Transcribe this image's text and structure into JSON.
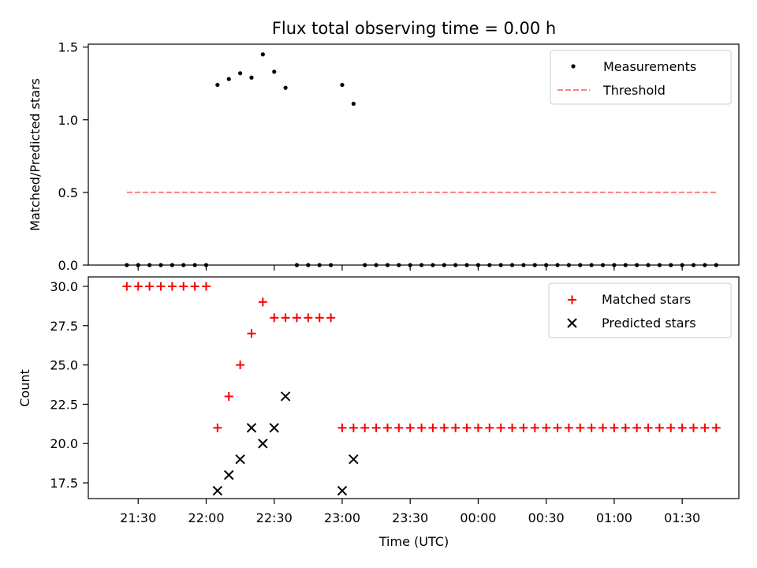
{
  "chart_data": [
    {
      "type": "scatter",
      "title": "Flux total observing time = 0.00 h",
      "xlabel": "",
      "ylabel": "Matched/Predicted stars",
      "ylim": [
        0,
        1.52
      ],
      "yticks": [
        0.0,
        0.5,
        1.0,
        1.5
      ],
      "ytick_labels": [
        "0.0",
        "0.5",
        "1.0",
        "1.5"
      ],
      "legend_position": "top-right",
      "series": [
        {
          "name": "Measurements",
          "marker": "dot",
          "color": "#000000",
          "x": [
            "21:25",
            "21:30",
            "21:35",
            "21:40",
            "21:45",
            "21:50",
            "21:55",
            "22:00",
            "22:05",
            "22:10",
            "22:15",
            "22:20",
            "22:25",
            "22:30",
            "22:35",
            "22:40",
            "22:45",
            "22:50",
            "22:55",
            "23:00",
            "23:05",
            "23:10",
            "23:15",
            "23:20",
            "23:25",
            "23:30",
            "23:35",
            "23:40",
            "23:45",
            "23:50",
            "23:55",
            "00:00",
            "00:05",
            "00:10",
            "00:15",
            "00:20",
            "00:25",
            "00:30",
            "00:35",
            "00:40",
            "00:45",
            "00:50",
            "00:55",
            "01:00",
            "01:05",
            "01:10",
            "01:15",
            "01:20",
            "01:25",
            "01:30",
            "01:35",
            "01:40",
            "01:45"
          ],
          "y": [
            0,
            0,
            0,
            0,
            0,
            0,
            0,
            0,
            1.24,
            1.28,
            1.32,
            1.29,
            1.45,
            1.33,
            1.22,
            0,
            0,
            0,
            0,
            1.24,
            1.11,
            0,
            0,
            0,
            0,
            0,
            0,
            0,
            0,
            0,
            0,
            0,
            0,
            0,
            0,
            0,
            0,
            0,
            0,
            0,
            0,
            0,
            0,
            0,
            0,
            0,
            0,
            0,
            0,
            0,
            0,
            0,
            0
          ]
        },
        {
          "name": "Threshold",
          "style": "dashed-line",
          "color": "#ff7f7f",
          "x": [
            "21:25",
            "01:45"
          ],
          "y": [
            0.5,
            0.5
          ]
        }
      ]
    },
    {
      "type": "scatter",
      "title": "",
      "xlabel": "Time (UTC)",
      "ylabel": "Count",
      "ylim": [
        16.5,
        30.6
      ],
      "yticks": [
        17.5,
        20.0,
        22.5,
        25.0,
        27.5,
        30.0
      ],
      "ytick_labels": [
        "17.5",
        "20.0",
        "22.5",
        "25.0",
        "27.5",
        "30.0"
      ],
      "xlim": [
        "21:08",
        "01:55"
      ],
      "xticks": [
        "21:30",
        "22:00",
        "22:30",
        "23:00",
        "23:30",
        "00:00",
        "00:30",
        "01:00",
        "01:30"
      ],
      "legend_position": "top-right",
      "series": [
        {
          "name": "Matched stars",
          "marker": "plus",
          "color": "#ff0000",
          "x": [
            "21:25",
            "21:30",
            "21:35",
            "21:40",
            "21:45",
            "21:50",
            "21:55",
            "22:00",
            "22:05",
            "22:10",
            "22:15",
            "22:20",
            "22:25",
            "22:30",
            "22:35",
            "22:40",
            "22:45",
            "22:50",
            "22:55",
            "23:00",
            "23:05",
            "23:10",
            "23:15",
            "23:20",
            "23:25",
            "23:30",
            "23:35",
            "23:40",
            "23:45",
            "23:50",
            "23:55",
            "00:00",
            "00:05",
            "00:10",
            "00:15",
            "00:20",
            "00:25",
            "00:30",
            "00:35",
            "00:40",
            "00:45",
            "00:50",
            "00:55",
            "01:00",
            "01:05",
            "01:10",
            "01:15",
            "01:20",
            "01:25",
            "01:30",
            "01:35",
            "01:40",
            "01:45"
          ],
          "y": [
            30,
            30,
            30,
            30,
            30,
            30,
            30,
            30,
            21,
            23,
            25,
            27,
            29,
            28,
            28,
            28,
            28,
            28,
            28,
            21,
            21,
            21,
            21,
            21,
            21,
            21,
            21,
            21,
            21,
            21,
            21,
            21,
            21,
            21,
            21,
            21,
            21,
            21,
            21,
            21,
            21,
            21,
            21,
            21,
            21,
            21,
            21,
            21,
            21,
            21,
            21,
            21,
            21
          ]
        },
        {
          "name": "Predicted stars",
          "marker": "x",
          "color": "#000000",
          "x": [
            "22:05",
            "22:10",
            "22:15",
            "22:20",
            "22:25",
            "22:30",
            "22:35",
            "23:00",
            "23:05"
          ],
          "y": [
            17,
            18,
            19,
            21,
            20,
            21,
            23,
            17,
            19
          ]
        }
      ]
    }
  ]
}
